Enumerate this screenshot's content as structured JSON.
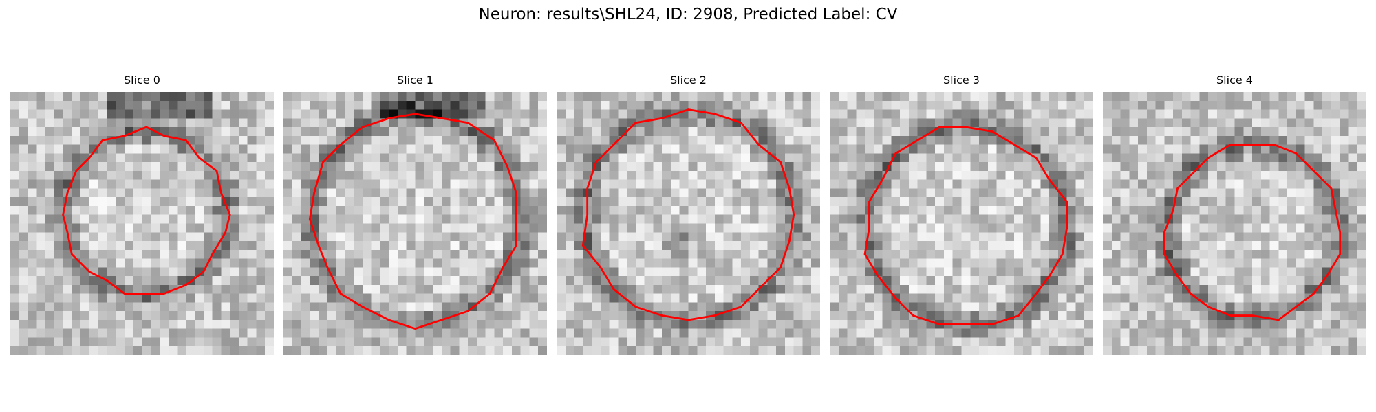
{
  "title": "Neuron: results\\SHL24, ID: 2908, Predicted Label: CV",
  "panels": [
    {
      "label": "Slice 0",
      "seed": 11,
      "center": [
        0.51,
        0.46
      ],
      "radius": 0.31,
      "inner_dark": false,
      "top_dark": true
    },
    {
      "label": "Slice 1",
      "seed": 23,
      "center": [
        0.5,
        0.48
      ],
      "radius": 0.4,
      "inner_dark": false,
      "top_dark": true
    },
    {
      "label": "Slice 2",
      "seed": 37,
      "center": [
        0.5,
        0.47
      ],
      "radius": 0.4,
      "inner_dark": true,
      "top_dark": false
    },
    {
      "label": "Slice 3",
      "seed": 41,
      "center": [
        0.52,
        0.51
      ],
      "radius": 0.38,
      "inner_dark": false,
      "top_dark": false
    },
    {
      "label": "Slice 4",
      "seed": 53,
      "center": [
        0.57,
        0.53
      ],
      "radius": 0.33,
      "inner_dark": false,
      "top_dark": false
    }
  ],
  "colors": {
    "contour": "#ff0000"
  },
  "icons": {
    "contour": "red-outline-polygon"
  }
}
